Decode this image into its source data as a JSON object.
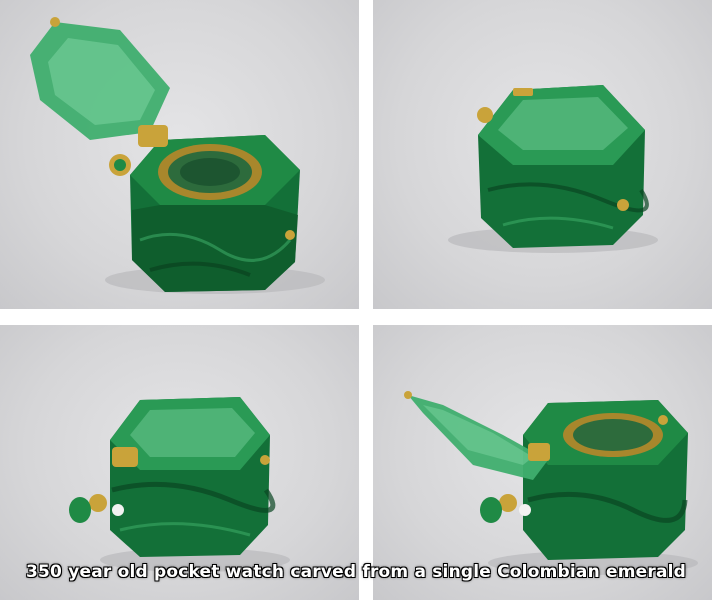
{
  "caption": "350 year old pocket watch carved from a single Colombian emerald",
  "colors": {
    "emerald_dark": "#0f5a2c",
    "emerald_mid": "#1f8a45",
    "emerald_light": "#5cc487",
    "gold": "#c9a33a",
    "background": "#d8d8da"
  },
  "panels": [
    {
      "id": "open-lid-view"
    },
    {
      "id": "closed-top-view"
    },
    {
      "id": "closed-side-view"
    },
    {
      "id": "open-side-view"
    }
  ]
}
